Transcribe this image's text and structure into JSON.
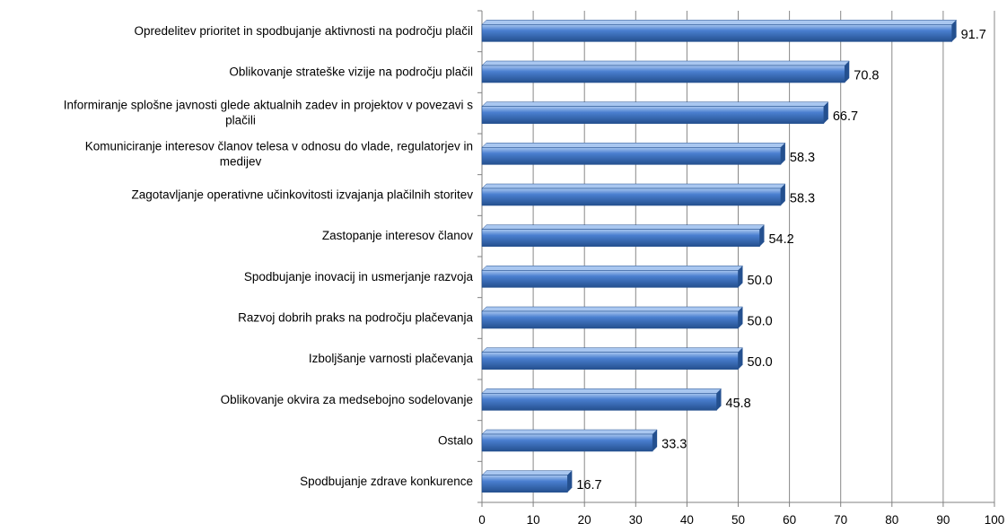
{
  "chart_data": {
    "type": "bar",
    "orientation": "horizontal",
    "categories": [
      [
        "Opredelitev prioritet in spodbujanje aktivnosti na področju plačil"
      ],
      [
        "Oblikovanje strateške vizije na področju plačil"
      ],
      [
        "Informiranje splošne javnosti glede aktualnih zadev in projektov v povezavi s",
        "plačili"
      ],
      [
        "Komuniciranje interesov članov telesa v odnosu do vlade, regulatorjev in",
        "medijev"
      ],
      [
        "Zagotavljanje operativne učinkovitosti izvajanja plačilnih storitev"
      ],
      [
        "Zastopanje interesov članov"
      ],
      [
        "Spodbujanje inovacij in usmerjanje razvoja"
      ],
      [
        "Razvoj dobrih praks na področju plačevanja"
      ],
      [
        "Izboljšanje varnosti plačevanja"
      ],
      [
        "Oblikovanje okvira za medsebojno sodelovanje"
      ],
      [
        "Ostalo"
      ],
      [
        "Spodbujanje zdrave konkurence"
      ]
    ],
    "values": [
      91.7,
      70.8,
      66.7,
      58.3,
      58.3,
      54.2,
      50.0,
      50.0,
      50.0,
      45.8,
      33.3,
      16.7
    ],
    "value_labels": [
      "91.7",
      "70.8",
      "66.7",
      "58.3",
      "58.3",
      "54.2",
      "50.0",
      "50.0",
      "50.0",
      "45.8",
      "33.3",
      "16.7"
    ],
    "xticks": [
      "0",
      "10",
      "20",
      "30",
      "40",
      "50",
      "60",
      "70",
      "80",
      "90",
      "100"
    ],
    "xlim": [
      0,
      100
    ],
    "grid": "vertical",
    "bar_color": "#4a7fd0",
    "bar_color_dark": "#24508f",
    "bar_color_light": "#a9c7f0",
    "grid_color": "#888888",
    "axis_color": "#808080"
  }
}
